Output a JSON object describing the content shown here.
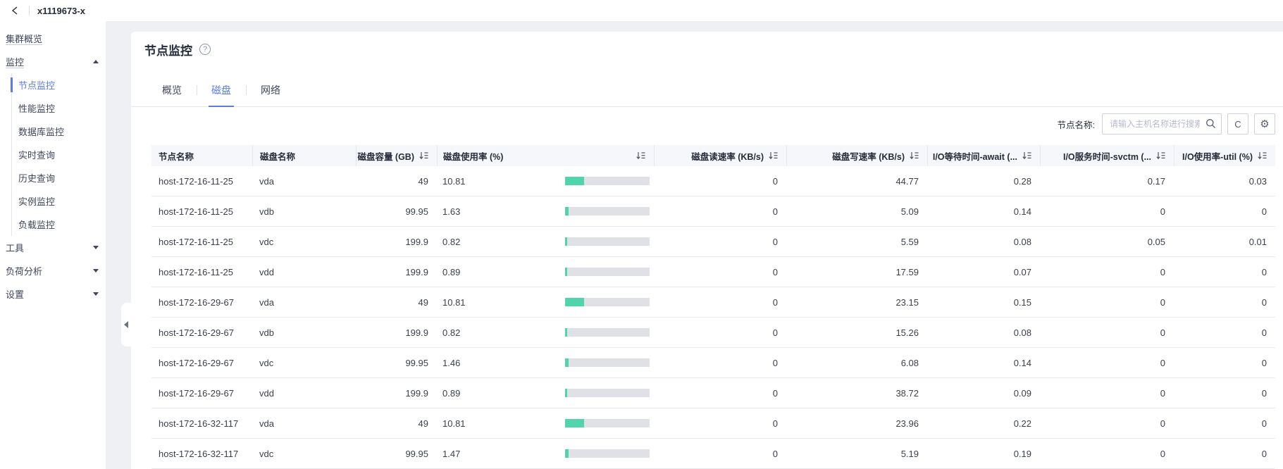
{
  "topbar": {
    "cluster_name": "x1119673-x"
  },
  "icons": {
    "help": "?",
    "refresh": "C",
    "gear": "⚙"
  },
  "sidebar": {
    "items": [
      {
        "label": "集群概览",
        "type": "top",
        "underline": true
      },
      {
        "label": "监控",
        "type": "top",
        "underline": true,
        "arrow": "up"
      },
      {
        "label": "节点监控",
        "type": "sub",
        "active": true
      },
      {
        "label": "性能监控",
        "type": "sub"
      },
      {
        "label": "数据库监控",
        "type": "sub"
      },
      {
        "label": "实时查询",
        "type": "sub"
      },
      {
        "label": "历史查询",
        "type": "sub"
      },
      {
        "label": "实例监控",
        "type": "sub"
      },
      {
        "label": "负载监控",
        "type": "sub"
      },
      {
        "label": "工具",
        "type": "top",
        "arrow": "down"
      },
      {
        "label": "负荷分析",
        "type": "top",
        "arrow": "down"
      },
      {
        "label": "设置",
        "type": "top",
        "arrow": "down"
      }
    ]
  },
  "page": {
    "title": "节点监控"
  },
  "tabs": [
    {
      "label": "概览",
      "active": false
    },
    {
      "label": "磁盘",
      "active": true
    },
    {
      "label": "网络",
      "active": false
    }
  ],
  "toolbar": {
    "filter_label": "节点名称:",
    "search_placeholder": "请输入主机名称进行搜索",
    "search_value": ""
  },
  "table": {
    "columns": [
      {
        "key": "node",
        "label": "节点名称",
        "sortable": false,
        "align": "left"
      },
      {
        "key": "disk",
        "label": "磁盘名称",
        "sortable": false,
        "align": "left"
      },
      {
        "key": "capacity",
        "label": "磁盘容量 (GB)",
        "sortable": true,
        "align": "right"
      },
      {
        "key": "usage",
        "label": "磁盘使用率 (%)",
        "sortable": true,
        "align": "split"
      },
      {
        "key": "read",
        "label": "磁盘读速率 (KB/s)",
        "sortable": true,
        "align": "right"
      },
      {
        "key": "write",
        "label": "磁盘写速率 (KB/s)",
        "sortable": true,
        "align": "right"
      },
      {
        "key": "await",
        "label": "I/O等待时间-await (...",
        "sortable": true,
        "align": "right"
      },
      {
        "key": "svctm",
        "label": "I/O服务时间-svctm (...",
        "sortable": true,
        "align": "right"
      },
      {
        "key": "util",
        "label": "I/O使用率-util (%)",
        "sortable": true,
        "align": "right"
      }
    ],
    "rows": [
      {
        "node": "host-172-16-11-25",
        "disk": "vda",
        "capacity": "49",
        "usage": "10.81",
        "read": "0",
        "write": "44.77",
        "await": "0.28",
        "svctm": "0.17",
        "util": "0.03"
      },
      {
        "node": "host-172-16-11-25",
        "disk": "vdb",
        "capacity": "99.95",
        "usage": "1.63",
        "read": "0",
        "write": "5.09",
        "await": "0.14",
        "svctm": "0",
        "util": "0"
      },
      {
        "node": "host-172-16-11-25",
        "disk": "vdc",
        "capacity": "199.9",
        "usage": "0.82",
        "read": "0",
        "write": "5.59",
        "await": "0.08",
        "svctm": "0.05",
        "util": "0.01"
      },
      {
        "node": "host-172-16-11-25",
        "disk": "vdd",
        "capacity": "199.9",
        "usage": "0.89",
        "read": "0",
        "write": "17.59",
        "await": "0.07",
        "svctm": "0",
        "util": "0"
      },
      {
        "node": "host-172-16-29-67",
        "disk": "vda",
        "capacity": "49",
        "usage": "10.81",
        "read": "0",
        "write": "23.15",
        "await": "0.15",
        "svctm": "0",
        "util": "0"
      },
      {
        "node": "host-172-16-29-67",
        "disk": "vdb",
        "capacity": "199.9",
        "usage": "0.82",
        "read": "0",
        "write": "15.26",
        "await": "0.08",
        "svctm": "0",
        "util": "0"
      },
      {
        "node": "host-172-16-29-67",
        "disk": "vdc",
        "capacity": "99.95",
        "usage": "1.46",
        "read": "0",
        "write": "6.08",
        "await": "0.14",
        "svctm": "0",
        "util": "0"
      },
      {
        "node": "host-172-16-29-67",
        "disk": "vdd",
        "capacity": "199.9",
        "usage": "0.89",
        "read": "0",
        "write": "38.72",
        "await": "0.09",
        "svctm": "0",
        "util": "0"
      },
      {
        "node": "host-172-16-32-117",
        "disk": "vda",
        "capacity": "49",
        "usage": "10.81",
        "read": "0",
        "write": "23.96",
        "await": "0.22",
        "svctm": "0",
        "util": "0"
      },
      {
        "node": "host-172-16-32-117",
        "disk": "vdc",
        "capacity": "99.95",
        "usage": "1.47",
        "read": "0",
        "write": "5.19",
        "await": "0.19",
        "svctm": "0",
        "util": "0"
      }
    ]
  },
  "colors": {
    "accent": "#5e7ce0",
    "usage_bar_fill": "#50d4ab",
    "usage_bar_track": "#dfe1e6",
    "table_header_bg": "#f5f7fa"
  }
}
